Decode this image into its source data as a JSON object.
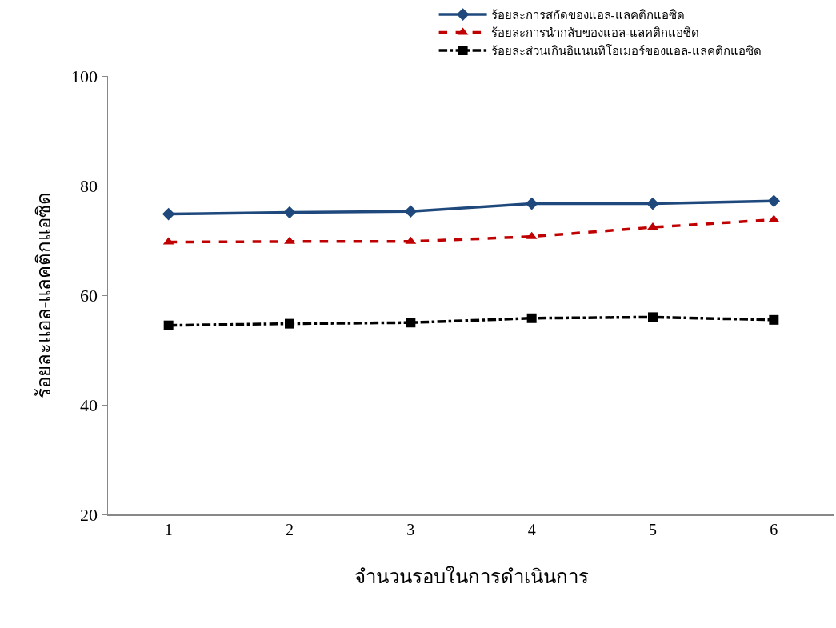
{
  "chart_data": {
    "type": "line",
    "xlabel": "จำนวนรอบในการดำเนินการ",
    "ylabel": "ร้อยละแอล-แลคติกแอซิด",
    "categories": [
      "1",
      "2",
      "3",
      "4",
      "5",
      "6"
    ],
    "series": [
      {
        "name": "ร้อยละการสกัดของแอล-แลคติกแอซิด",
        "color": "#1f497d",
        "marker": "diamond",
        "line_style": "solid",
        "values": [
          74.8,
          75.1,
          75.3,
          76.7,
          76.7,
          77.2
        ]
      },
      {
        "name": "ร้อยละการนำกลับของแอล-แลคติกแอซิด",
        "color": "#c00000",
        "marker": "triangle",
        "line_style": "dashed",
        "values": [
          69.7,
          69.8,
          69.8,
          70.7,
          72.4,
          73.8
        ]
      },
      {
        "name": "ร้อยละส่วนเกินอิแนนทิโอเมอร์ของแอล-แลคติกแอซิด",
        "color": "#000000",
        "marker": "square",
        "line_style": "dashdot",
        "values": [
          54.5,
          54.8,
          55.0,
          55.8,
          56.0,
          55.5
        ]
      }
    ],
    "ylim": [
      20,
      100
    ],
    "yticks": [
      20,
      40,
      60,
      80,
      100
    ],
    "grid": false,
    "legend": "top right"
  }
}
